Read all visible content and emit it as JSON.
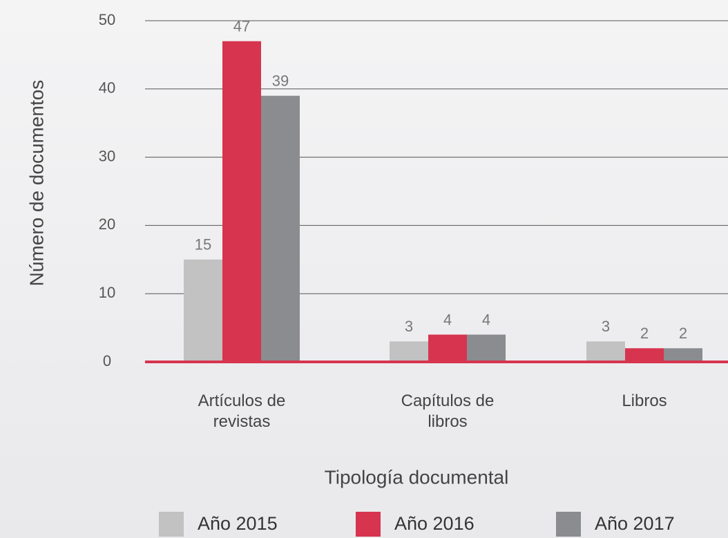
{
  "chart_data": {
    "type": "bar",
    "x_label": "Tipología documental",
    "y_label": "Número de documentos",
    "categories": [
      "Artículos de revistas",
      "Capítulos de libros",
      "Libros"
    ],
    "series": [
      {
        "name": "Año 2015",
        "color": "#c2c2c2",
        "values": [
          15,
          3,
          3
        ]
      },
      {
        "name": "Año 2016",
        "color": "#d7344f",
        "values": [
          47,
          4,
          2
        ]
      },
      {
        "name": "Año 2017",
        "color": "#8b8c90",
        "values": [
          39,
          4,
          2
        ]
      }
    ],
    "ylim": [
      0,
      50
    ],
    "yticks": [
      0,
      10,
      20,
      30,
      40,
      50
    ],
    "grid": true,
    "legend": "bottom"
  }
}
